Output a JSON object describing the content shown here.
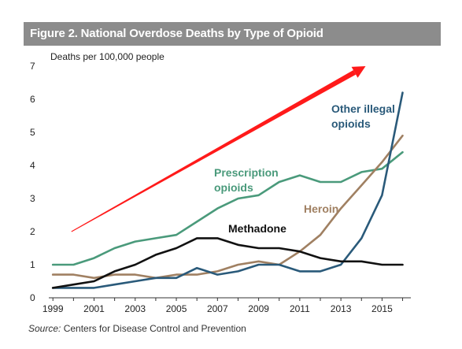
{
  "figure_title": "Figure 2. National Overdose Deaths by Type of Opioid",
  "source_label": "Source:",
  "source_text": "Centers for Disease Control and Prevention",
  "chart_data": {
    "type": "line",
    "ylabel": "Deaths per 100,000 people",
    "xlim": [
      1998.8,
      2016.4
    ],
    "ylim": [
      0,
      7
    ],
    "x_ticks": [
      1999,
      2001,
      2003,
      2005,
      2007,
      2009,
      2011,
      2013,
      2015
    ],
    "y_ticks": [
      0,
      1,
      2,
      3,
      4,
      5,
      6,
      7
    ],
    "grid": false,
    "x": [
      1999,
      2000,
      2001,
      2002,
      2003,
      2004,
      2005,
      2006,
      2007,
      2008,
      2009,
      2010,
      2011,
      2012,
      2013,
      2014,
      2015,
      2016
    ],
    "series": [
      {
        "name": "Prescription opioids",
        "label_lines": [
          "Prescription",
          "opioids"
        ],
        "color": "#4a9a7b",
        "values": [
          1.0,
          1.0,
          1.2,
          1.5,
          1.7,
          1.8,
          1.9,
          2.3,
          2.7,
          3.0,
          3.1,
          3.5,
          3.7,
          3.5,
          3.5,
          3.8,
          3.9,
          4.4
        ]
      },
      {
        "name": "Heroin",
        "label_lines": [
          "Heroin"
        ],
        "color": "#a08062",
        "values": [
          0.7,
          0.7,
          0.6,
          0.7,
          0.7,
          0.6,
          0.7,
          0.7,
          0.8,
          1.0,
          1.1,
          1.0,
          1.4,
          1.9,
          2.7,
          3.4,
          4.1,
          4.9
        ]
      },
      {
        "name": "Other illegal opioids",
        "label_lines": [
          "Other illegal",
          "opioids"
        ],
        "color": "#2a5a7a",
        "values": [
          0.3,
          0.3,
          0.3,
          0.4,
          0.5,
          0.6,
          0.6,
          0.9,
          0.7,
          0.8,
          1.0,
          1.0,
          0.8,
          0.8,
          1.0,
          1.8,
          3.1,
          6.2
        ]
      },
      {
        "name": "Methadone",
        "label_lines": [
          "Methadone"
        ],
        "color": "#111111",
        "values": [
          0.3,
          0.4,
          0.5,
          0.8,
          1.0,
          1.3,
          1.5,
          1.8,
          1.8,
          1.6,
          1.5,
          1.5,
          1.4,
          1.2,
          1.1,
          1.1,
          1.0,
          1.0
        ]
      }
    ],
    "annotation_arrow": {
      "color": "#ff1a1a",
      "from": [
        1999.9,
        2.0
      ],
      "to": [
        2014.2,
        7.0
      ]
    }
  }
}
